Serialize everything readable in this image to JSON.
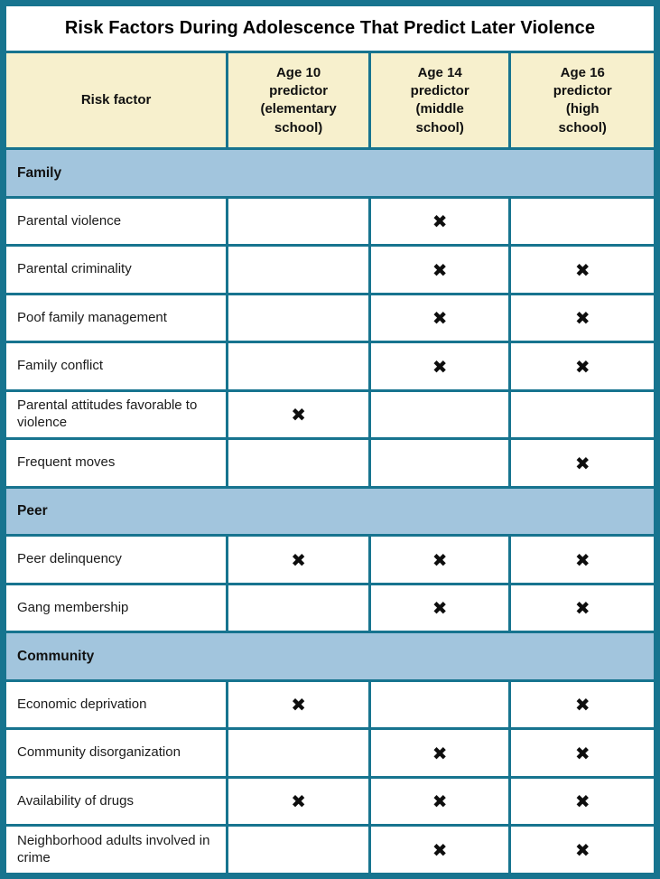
{
  "colors": {
    "border_teal": "#17748f",
    "header_cream": "#f7f0cd",
    "section_blue": "#a2c5dd",
    "mark_black": "#0e0e0e",
    "background": "#ffffff"
  },
  "mark_glyph": "✖",
  "chart_data": {
    "type": "table",
    "title": "Risk Factors During Adolescence That Predict Later Violence",
    "columns": [
      "Risk factor",
      "Age 10 predictor (elementary school)",
      "Age 14 predictor (middle school)",
      "Age 16 predictor (high school)"
    ],
    "column_headers_display": [
      "Risk factor",
      "Age 10\npredictor\n(elementary\nschool)",
      "Age 14\npredictor\n(middle\nschool)",
      "Age 16\npredictor\n(high\nschool)"
    ],
    "sections": [
      {
        "name": "Family",
        "rows": [
          {
            "label": "Parental violence",
            "marks": [
              false,
              true,
              false
            ]
          },
          {
            "label": "Parental criminality",
            "marks": [
              false,
              true,
              true
            ]
          },
          {
            "label": "Poof family management",
            "marks": [
              false,
              true,
              true
            ]
          },
          {
            "label": "Family conflict",
            "marks": [
              false,
              true,
              true
            ]
          },
          {
            "label": "Parental attitudes favorable to violence",
            "marks": [
              true,
              false,
              false
            ]
          },
          {
            "label": "Frequent moves",
            "marks": [
              false,
              false,
              true
            ]
          }
        ]
      },
      {
        "name": "Peer",
        "rows": [
          {
            "label": "Peer delinquency",
            "marks": [
              true,
              true,
              true
            ]
          },
          {
            "label": "Gang membership",
            "marks": [
              false,
              true,
              true
            ]
          }
        ]
      },
      {
        "name": "Community",
        "rows": [
          {
            "label": "Economic deprivation",
            "marks": [
              true,
              false,
              true
            ]
          },
          {
            "label": "Community disorganization",
            "marks": [
              false,
              true,
              true
            ]
          },
          {
            "label": "Availability of drugs",
            "marks": [
              true,
              true,
              true
            ]
          },
          {
            "label": "Neighborhood adults involved in crime",
            "marks": [
              false,
              true,
              true
            ]
          }
        ]
      }
    ]
  }
}
